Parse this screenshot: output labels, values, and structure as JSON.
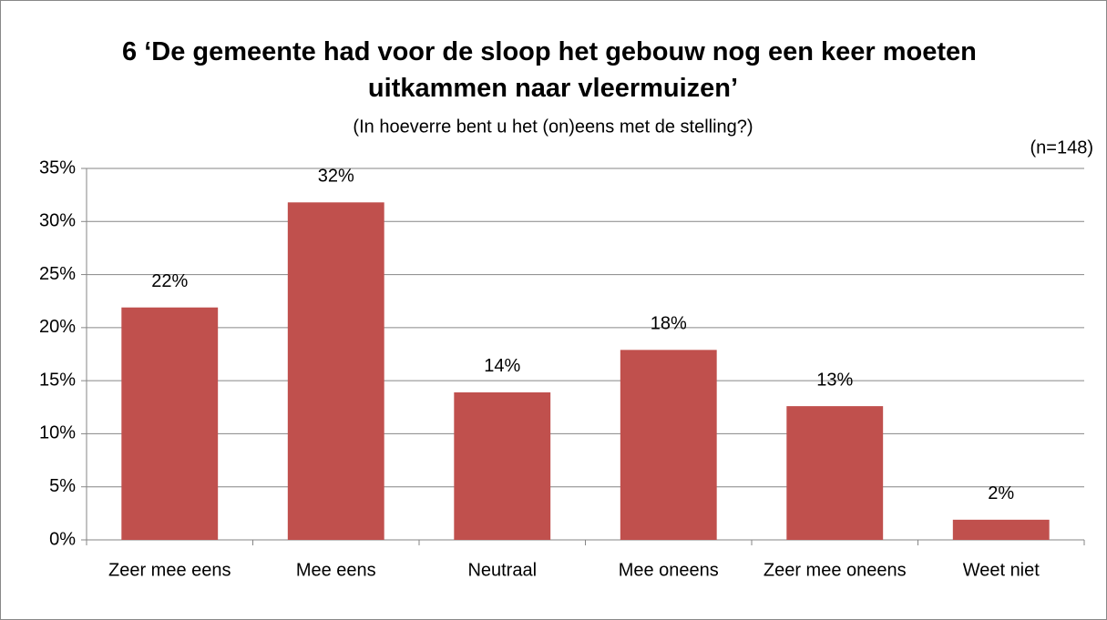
{
  "chart_data": {
    "type": "bar",
    "title": "6 ‘De gemeente had voor de sloop het gebouw nog een keer moeten uitkammen naar vleermuizen’",
    "subtitle": "(In hoeverre bent u het (on)eens met de stelling?)",
    "annotation": "(n=148)",
    "categories": [
      "Zeer mee eens",
      "Mee eens",
      "Neutraal",
      "Mee oneens",
      "Zeer mee oneens",
      "Weet niet"
    ],
    "values": [
      21.9,
      31.8,
      13.9,
      17.9,
      12.6,
      1.9
    ],
    "value_labels": [
      "22%",
      "32%",
      "14%",
      "18%",
      "13%",
      "2%"
    ],
    "color": "#c0504d",
    "ylim": [
      0,
      35
    ],
    "yticks": [
      {
        "value": 0,
        "label": "0%"
      },
      {
        "value": 5,
        "label": "5%"
      },
      {
        "value": 10,
        "label": "10%"
      },
      {
        "value": 15,
        "label": "15%"
      },
      {
        "value": 20,
        "label": "20%"
      },
      {
        "value": 25,
        "label": "25%"
      },
      {
        "value": 30,
        "label": "30%"
      },
      {
        "value": 35,
        "label": "35%"
      }
    ],
    "grid": true
  }
}
